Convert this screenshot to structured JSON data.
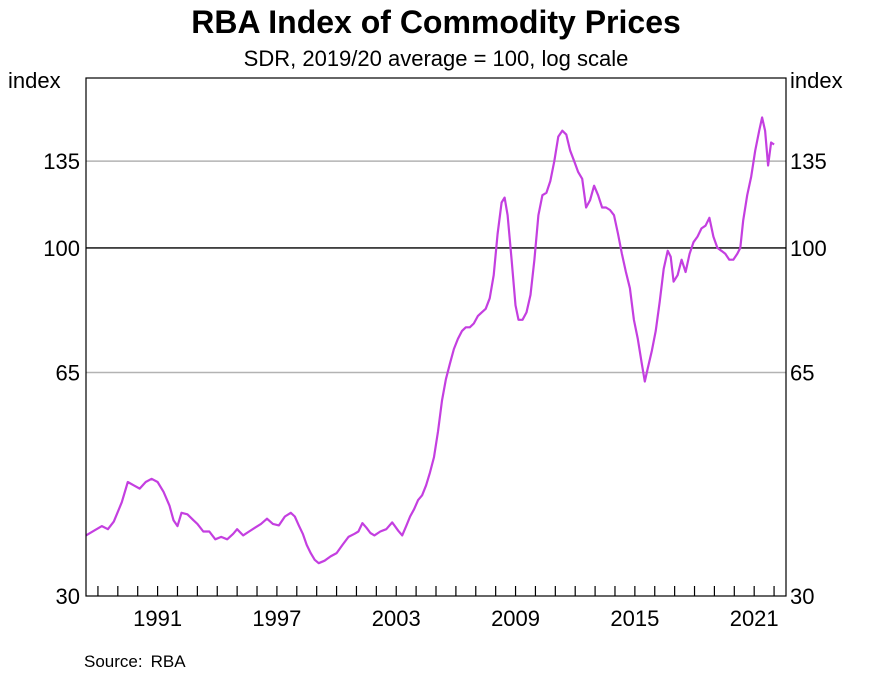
{
  "title": "RBA Index of Commodity Prices",
  "subtitle": "SDR, 2019/20 average = 100, log scale",
  "source": {
    "label": "Source:",
    "value": "RBA"
  },
  "colors": {
    "line": "#c43fe0",
    "grid": "#b3b3b3",
    "ref_line": "#000000",
    "axis": "#000000"
  },
  "chart_data": {
    "type": "line",
    "y_scale": "log",
    "ylabel_left": "index",
    "ylabel_right": "index",
    "ylim": [
      30,
      180
    ],
    "xlim": [
      1987.4,
      2022.6
    ],
    "y_ticks": [
      30,
      65,
      100,
      135
    ],
    "y_tick_labels": [
      "30",
      "65",
      "100",
      "135"
    ],
    "x_tick_labels": [
      {
        "year": 1991,
        "label": "1991"
      },
      {
        "year": 1997,
        "label": "1997"
      },
      {
        "year": 2003,
        "label": "2003"
      },
      {
        "year": 2009,
        "label": "2009"
      },
      {
        "year": 2015,
        "label": "2015"
      },
      {
        "year": 2021,
        "label": "2021"
      }
    ],
    "minor_ticks_every_year": true,
    "reference_line": 100,
    "grid_lines": [
      65,
      135
    ],
    "series": [
      {
        "points": [
          [
            1987.4,
            37.0
          ],
          [
            1987.8,
            37.6
          ],
          [
            1988.2,
            38.2
          ],
          [
            1988.5,
            37.8
          ],
          [
            1988.8,
            38.8
          ],
          [
            1989.2,
            41.5
          ],
          [
            1989.5,
            44.5
          ],
          [
            1989.8,
            44.0
          ],
          [
            1990.1,
            43.5
          ],
          [
            1990.4,
            44.5
          ],
          [
            1990.7,
            45.0
          ],
          [
            1991.0,
            44.5
          ],
          [
            1991.3,
            43.0
          ],
          [
            1991.6,
            41.0
          ],
          [
            1991.8,
            39.0
          ],
          [
            1992.0,
            38.2
          ],
          [
            1992.2,
            40.0
          ],
          [
            1992.5,
            39.8
          ],
          [
            1992.8,
            39.0
          ],
          [
            1993.0,
            38.5
          ],
          [
            1993.3,
            37.5
          ],
          [
            1993.6,
            37.5
          ],
          [
            1993.9,
            36.5
          ],
          [
            1994.2,
            36.8
          ],
          [
            1994.5,
            36.5
          ],
          [
            1994.8,
            37.2
          ],
          [
            1995.0,
            37.8
          ],
          [
            1995.3,
            37.0
          ],
          [
            1995.6,
            37.5
          ],
          [
            1995.9,
            38.0
          ],
          [
            1996.2,
            38.5
          ],
          [
            1996.5,
            39.2
          ],
          [
            1996.8,
            38.5
          ],
          [
            1997.1,
            38.3
          ],
          [
            1997.4,
            39.5
          ],
          [
            1997.7,
            40.0
          ],
          [
            1997.9,
            39.5
          ],
          [
            1998.1,
            38.3
          ],
          [
            1998.3,
            37.2
          ],
          [
            1998.5,
            35.8
          ],
          [
            1998.7,
            34.8
          ],
          [
            1998.9,
            34.0
          ],
          [
            1999.1,
            33.6
          ],
          [
            1999.4,
            33.9
          ],
          [
            1999.7,
            34.4
          ],
          [
            2000.0,
            34.8
          ],
          [
            2000.3,
            35.8
          ],
          [
            2000.6,
            36.8
          ],
          [
            2000.9,
            37.2
          ],
          [
            2001.1,
            37.5
          ],
          [
            2001.3,
            38.6
          ],
          [
            2001.5,
            38.0
          ],
          [
            2001.7,
            37.3
          ],
          [
            2001.9,
            37.0
          ],
          [
            2002.2,
            37.5
          ],
          [
            2002.5,
            37.8
          ],
          [
            2002.8,
            38.7
          ],
          [
            2003.1,
            37.6
          ],
          [
            2003.3,
            37.0
          ],
          [
            2003.5,
            38.2
          ],
          [
            2003.7,
            39.5
          ],
          [
            2003.9,
            40.5
          ],
          [
            2004.1,
            41.8
          ],
          [
            2004.3,
            42.5
          ],
          [
            2004.5,
            44.0
          ],
          [
            2004.7,
            46.0
          ],
          [
            2004.9,
            48.5
          ],
          [
            2005.1,
            53.0
          ],
          [
            2005.3,
            59.0
          ],
          [
            2005.5,
            63.5
          ],
          [
            2005.7,
            67.0
          ],
          [
            2005.9,
            70.5
          ],
          [
            2006.1,
            73.0
          ],
          [
            2006.3,
            75.0
          ],
          [
            2006.5,
            76.0
          ],
          [
            2006.7,
            76.0
          ],
          [
            2006.9,
            77.0
          ],
          [
            2007.1,
            79.0
          ],
          [
            2007.3,
            80.0
          ],
          [
            2007.5,
            81.0
          ],
          [
            2007.7,
            84.0
          ],
          [
            2007.9,
            91.0
          ],
          [
            2008.1,
            105.0
          ],
          [
            2008.3,
            117.0
          ],
          [
            2008.45,
            119.0
          ],
          [
            2008.6,
            112.0
          ],
          [
            2008.8,
            96.0
          ],
          [
            2009.0,
            82.0
          ],
          [
            2009.15,
            78.0
          ],
          [
            2009.35,
            78.0
          ],
          [
            2009.55,
            80.0
          ],
          [
            2009.75,
            85.0
          ],
          [
            2009.95,
            96.0
          ],
          [
            2010.15,
            112.0
          ],
          [
            2010.35,
            120.0
          ],
          [
            2010.55,
            121.0
          ],
          [
            2010.75,
            126.0
          ],
          [
            2010.95,
            135.0
          ],
          [
            2011.15,
            147.0
          ],
          [
            2011.35,
            150.0
          ],
          [
            2011.55,
            148.0
          ],
          [
            2011.75,
            140.0
          ],
          [
            2011.95,
            135.0
          ],
          [
            2012.15,
            130.0
          ],
          [
            2012.35,
            127.0
          ],
          [
            2012.55,
            115.0
          ],
          [
            2012.75,
            118.0
          ],
          [
            2012.95,
            124.0
          ],
          [
            2013.15,
            120.0
          ],
          [
            2013.35,
            115.0
          ],
          [
            2013.55,
            115.0
          ],
          [
            2013.75,
            114.0
          ],
          [
            2013.95,
            112.0
          ],
          [
            2014.15,
            105.0
          ],
          [
            2014.35,
            98.0
          ],
          [
            2014.55,
            92.0
          ],
          [
            2014.75,
            87.0
          ],
          [
            2014.95,
            78.0
          ],
          [
            2015.15,
            73.0
          ],
          [
            2015.35,
            67.0
          ],
          [
            2015.5,
            63.0
          ],
          [
            2015.65,
            66.0
          ],
          [
            2015.85,
            70.0
          ],
          [
            2016.05,
            75.0
          ],
          [
            2016.25,
            83.0
          ],
          [
            2016.45,
            93.0
          ],
          [
            2016.65,
            99.0
          ],
          [
            2016.8,
            97.0
          ],
          [
            2016.95,
            89.0
          ],
          [
            2017.15,
            91.0
          ],
          [
            2017.35,
            96.0
          ],
          [
            2017.55,
            92.0
          ],
          [
            2017.75,
            98.0
          ],
          [
            2017.95,
            102.0
          ],
          [
            2018.15,
            104.0
          ],
          [
            2018.35,
            107.0
          ],
          [
            2018.55,
            108.0
          ],
          [
            2018.75,
            111.0
          ],
          [
            2018.95,
            104.0
          ],
          [
            2019.15,
            100.0
          ],
          [
            2019.35,
            99.0
          ],
          [
            2019.55,
            98.0
          ],
          [
            2019.75,
            96.0
          ],
          [
            2019.95,
            96.0
          ],
          [
            2020.15,
            98.0
          ],
          [
            2020.3,
            100.0
          ],
          [
            2020.45,
            110.0
          ],
          [
            2020.65,
            120.0
          ],
          [
            2020.85,
            128.0
          ],
          [
            2021.05,
            140.0
          ],
          [
            2021.25,
            150.0
          ],
          [
            2021.4,
            157.0
          ],
          [
            2021.55,
            150.0
          ],
          [
            2021.7,
            133.0
          ],
          [
            2021.85,
            144.0
          ],
          [
            2022.0,
            143.0
          ]
        ]
      }
    ]
  }
}
